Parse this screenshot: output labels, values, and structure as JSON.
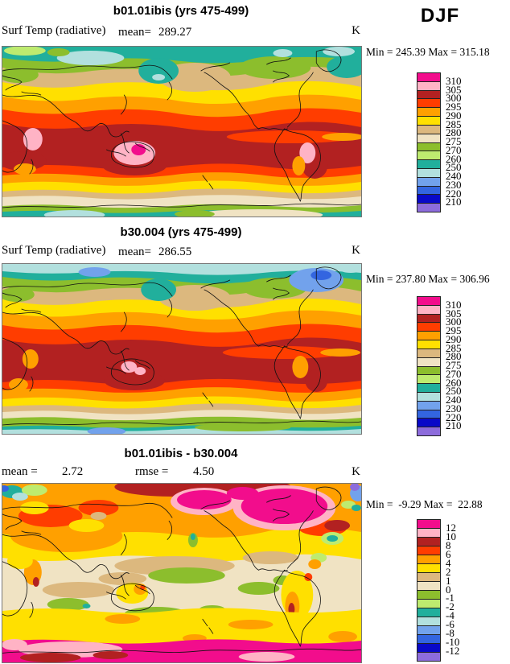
{
  "header": {
    "season_label": "DJF"
  },
  "palette": {
    "magenta": "#F20D8C",
    "pink": "#FFB3C5",
    "brick": "#B22121",
    "redorange": "#FF3D00",
    "orange": "#FFA000",
    "yellow": "#FFE000",
    "tan": "#DCB87E",
    "beige": "#F0E3C3",
    "olive": "#8CBE2D",
    "lightgreen": "#BEEB6F",
    "teal": "#21AF9C",
    "lightcyan": "#B2E0DE",
    "lightblue": "#72A2EC",
    "blue": "#3365E0",
    "darkblue": "#0909C8",
    "purple": "#8D6CDC"
  },
  "colorbar": {
    "order": [
      "magenta",
      "pink",
      "brick",
      "redorange",
      "orange",
      "yellow",
      "tan",
      "beige",
      "olive",
      "lightgreen",
      "teal",
      "lightcyan",
      "lightblue",
      "blue",
      "darkblue",
      "purple"
    ]
  },
  "panels": [
    {
      "title": "b01.01ibis (yrs 475-499)",
      "var_label": "Surf Temp (radiative)",
      "mean_label": "mean=",
      "mean_value": "289.27",
      "unit_label": "K",
      "minmax": "Min = 245.39 Max = 315.18",
      "levels": [
        "310",
        "305",
        "300",
        "295",
        "290",
        "285",
        "280",
        "275",
        "270",
        "260",
        "250",
        "240",
        "230",
        "220",
        "210"
      ]
    },
    {
      "title": "b30.004 (yrs 475-499)",
      "var_label": "Surf Temp (radiative)",
      "mean_label": "mean=",
      "mean_value": "286.55",
      "unit_label": "K",
      "minmax": "Min = 237.80 Max = 306.96",
      "levels": [
        "310",
        "305",
        "300",
        "295",
        "290",
        "285",
        "280",
        "275",
        "270",
        "260",
        "250",
        "240",
        "230",
        "220",
        "210"
      ]
    },
    {
      "title": "b01.01ibis - b30.004",
      "mean_label": "mean =",
      "mean_value": "2.72",
      "rmse_label": "rmse =",
      "rmse_value": "4.50",
      "unit_label": "K",
      "minmax": "Min =  -9.29 Max =  22.88",
      "levels": [
        "12",
        "10",
        "8",
        "6",
        "4",
        "2",
        "1",
        "0",
        "-1",
        "-2",
        "-4",
        "-6",
        "-8",
        "-10",
        "-12"
      ]
    }
  ],
  "chart_data": [
    {
      "type": "heatmap",
      "subtype": "filled-contour global map",
      "title": "b01.01ibis (yrs 475-499)",
      "variable": "Surf Temp (radiative)",
      "season": "DJF",
      "units": "K",
      "mean": 289.27,
      "min": 245.39,
      "max": 315.18,
      "contour_levels": [
        210,
        220,
        230,
        240,
        250,
        260,
        270,
        275,
        280,
        285,
        290,
        295,
        300,
        305,
        310
      ],
      "palette_hex_low_to_high": [
        "#8D6CDC",
        "#0909C8",
        "#3365E0",
        "#72A2EC",
        "#B2E0DE",
        "#21AF9C",
        "#BEEB6F",
        "#8CBE2D",
        "#F0E3C3",
        "#DCB87E",
        "#FFE000",
        "#FFA000",
        "#FF3D00",
        "#B22121",
        "#FFB3C5",
        "#F20D8C"
      ],
      "legend_position": "right",
      "projection": "cylindrical equidistant, Pacific-centered"
    },
    {
      "type": "heatmap",
      "subtype": "filled-contour global map",
      "title": "b30.004 (yrs 475-499)",
      "variable": "Surf Temp (radiative)",
      "season": "DJF",
      "units": "K",
      "mean": 286.55,
      "min": 237.8,
      "max": 306.96,
      "contour_levels": [
        210,
        220,
        230,
        240,
        250,
        260,
        270,
        275,
        280,
        285,
        290,
        295,
        300,
        305,
        310
      ],
      "palette_hex_low_to_high": [
        "#8D6CDC",
        "#0909C8",
        "#3365E0",
        "#72A2EC",
        "#B2E0DE",
        "#21AF9C",
        "#BEEB6F",
        "#8CBE2D",
        "#F0E3C3",
        "#DCB87E",
        "#FFE000",
        "#FFA000",
        "#FF3D00",
        "#B22121",
        "#FFB3C5",
        "#F20D8C"
      ],
      "legend_position": "right",
      "projection": "cylindrical equidistant, Pacific-centered"
    },
    {
      "type": "heatmap",
      "subtype": "filled-contour global difference map",
      "title": "b01.01ibis - b30.004",
      "variable": "Surf Temp (radiative) difference",
      "season": "DJF",
      "units": "K",
      "mean": 2.72,
      "rmse": 4.5,
      "min": -9.29,
      "max": 22.88,
      "contour_levels": [
        -12,
        -10,
        -8,
        -6,
        -4,
        -2,
        -1,
        0,
        1,
        2,
        4,
        6,
        8,
        10,
        12
      ],
      "palette_hex_low_to_high": [
        "#8D6CDC",
        "#0909C8",
        "#3365E0",
        "#72A2EC",
        "#B2E0DE",
        "#21AF9C",
        "#BEEB6F",
        "#8CBE2D",
        "#F0E3C3",
        "#DCB87E",
        "#FFE000",
        "#FFA000",
        "#FF3D00",
        "#B22121",
        "#FFB3C5",
        "#F20D8C"
      ],
      "legend_position": "right",
      "projection": "cylindrical equidistant, Pacific-centered"
    }
  ]
}
